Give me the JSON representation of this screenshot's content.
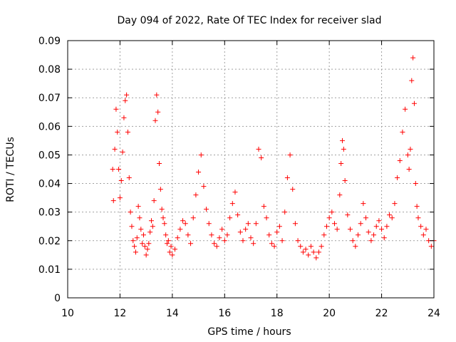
{
  "chart_data": {
    "type": "scatter",
    "title": "Day 094 of 2022, Rate Of TEC Index for receiver slad",
    "xlabel": "GPS time / hours",
    "ylabel": "ROTI / TECUs",
    "xlim": [
      10,
      24
    ],
    "ylim": [
      0,
      0.09
    ],
    "xticks": [
      "10",
      "12",
      "14",
      "16",
      "18",
      "20",
      "22",
      "24"
    ],
    "yticks": [
      "0",
      "0.01",
      "0.02",
      "0.03",
      "0.04",
      "0.05",
      "0.06",
      "0.07",
      "0.08",
      "0.09"
    ],
    "grid": true,
    "marker": "plus",
    "color": "#ff0000",
    "series": [
      {
        "x": [
          11.72,
          11.75,
          11.8,
          11.85,
          11.9,
          11.95,
          12.0,
          12.05,
          12.1,
          12.15,
          12.2,
          12.25,
          12.3,
          12.35,
          12.4,
          12.45,
          12.5,
          12.55,
          12.6,
          12.65,
          12.7,
          12.75,
          12.8,
          12.85,
          12.9,
          12.95,
          13.0,
          13.05,
          13.1,
          13.15,
          13.2,
          13.25,
          13.3,
          13.35,
          13.4,
          13.45,
          13.5,
          13.55,
          13.6,
          13.65,
          13.7,
          13.75,
          13.8,
          13.85,
          13.9,
          13.95,
          14.0,
          14.1,
          14.2,
          14.3,
          14.4,
          14.5,
          14.6,
          14.7,
          14.8,
          14.9,
          15.0,
          15.1,
          15.2,
          15.3,
          15.4,
          15.5,
          15.6,
          15.7,
          15.8,
          15.9,
          16.0,
          16.1,
          16.2,
          16.3,
          16.4,
          16.5,
          16.6,
          16.7,
          16.8,
          16.9,
          17.0,
          17.1,
          17.2,
          17.3,
          17.4,
          17.5,
          17.6,
          17.7,
          17.8,
          17.9,
          18.0,
          18.1,
          18.2,
          18.3,
          18.4,
          18.5,
          18.6,
          18.7,
          18.8,
          18.9,
          19.0,
          19.1,
          19.2,
          19.3,
          19.4,
          19.5,
          19.6,
          19.7,
          19.8,
          19.9,
          20.0,
          20.1,
          20.2,
          20.3,
          20.4,
          20.45,
          20.5,
          20.55,
          20.6,
          20.7,
          20.8,
          20.9,
          21.0,
          21.1,
          21.2,
          21.3,
          21.4,
          21.5,
          21.6,
          21.7,
          21.8,
          21.9,
          22.0,
          22.1,
          22.2,
          22.3,
          22.4,
          22.5,
          22.6,
          22.7,
          22.8,
          22.9,
          23.0,
          23.05,
          23.1,
          23.15,
          23.2,
          23.25,
          23.3,
          23.35,
          23.4,
          23.5,
          23.6,
          23.7,
          23.8,
          23.9,
          24.0
        ],
        "y": [
          0.045,
          0.034,
          0.052,
          0.066,
          0.058,
          0.045,
          0.035,
          0.041,
          0.051,
          0.063,
          0.069,
          0.071,
          0.058,
          0.042,
          0.03,
          0.025,
          0.02,
          0.018,
          0.016,
          0.021,
          0.032,
          0.028,
          0.024,
          0.019,
          0.022,
          0.018,
          0.015,
          0.017,
          0.019,
          0.023,
          0.027,
          0.025,
          0.034,
          0.062,
          0.071,
          0.065,
          0.047,
          0.038,
          0.031,
          0.028,
          0.026,
          0.022,
          0.019,
          0.02,
          0.016,
          0.018,
          0.015,
          0.017,
          0.021,
          0.024,
          0.027,
          0.026,
          0.022,
          0.019,
          0.028,
          0.036,
          0.044,
          0.05,
          0.039,
          0.031,
          0.026,
          0.022,
          0.019,
          0.018,
          0.021,
          0.024,
          0.02,
          0.022,
          0.028,
          0.033,
          0.037,
          0.029,
          0.023,
          0.02,
          0.024,
          0.026,
          0.021,
          0.019,
          0.026,
          0.052,
          0.049,
          0.032,
          0.028,
          0.022,
          0.019,
          0.018,
          0.023,
          0.025,
          0.02,
          0.03,
          0.042,
          0.05,
          0.038,
          0.026,
          0.02,
          0.018,
          0.016,
          0.017,
          0.015,
          0.018,
          0.016,
          0.014,
          0.016,
          0.018,
          0.022,
          0.025,
          0.028,
          0.03,
          0.026,
          0.024,
          0.036,
          0.047,
          0.055,
          0.052,
          0.041,
          0.029,
          0.024,
          0.02,
          0.018,
          0.022,
          0.026,
          0.033,
          0.028,
          0.023,
          0.02,
          0.022,
          0.025,
          0.027,
          0.024,
          0.021,
          0.025,
          0.029,
          0.028,
          0.033,
          0.042,
          0.048,
          0.058,
          0.066,
          0.05,
          0.045,
          0.052,
          0.076,
          0.084,
          0.068,
          0.04,
          0.032,
          0.028,
          0.025,
          0.022,
          0.024,
          0.02,
          0.018,
          0.02
        ]
      }
    ]
  }
}
